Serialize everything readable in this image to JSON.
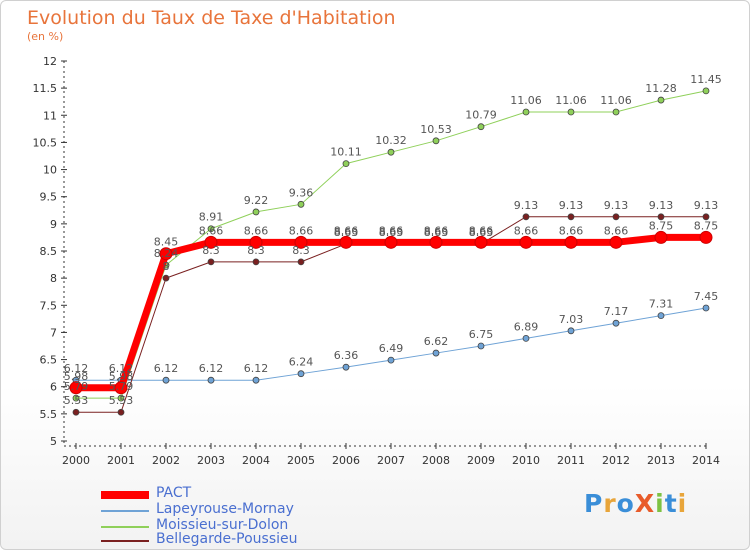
{
  "title": "Evolution du Taux de Taxe d'Habitation",
  "unit_label": "(en %)",
  "logo": {
    "text": "ProXiti",
    "letters": [
      "P",
      "r",
      "o",
      "X",
      "i",
      "t",
      "i"
    ],
    "colors": [
      "#3a8ed8",
      "#e8a53a",
      "#3a8ed8",
      "#e85b2a",
      "#7dc242",
      "#3a8ed8",
      "#e8a53a"
    ]
  },
  "chart_data": {
    "type": "line",
    "title": "Evolution du Taux de Taxe d'Habitation",
    "ylabel": "(en %)",
    "xlabel": "",
    "x": [
      "2000",
      "2001",
      "2002",
      "2003",
      "2004",
      "2005",
      "2006",
      "2007",
      "2008",
      "2009",
      "2010",
      "2011",
      "2012",
      "2013",
      "2014"
    ],
    "ylim": [
      5,
      12
    ],
    "yticks": [
      "5",
      "5.5",
      "6",
      "6.5",
      "7",
      "7.5",
      "8",
      "8.5",
      "9",
      "9.5",
      "10",
      "10.5",
      "11",
      "11.5",
      "12"
    ],
    "grid": false,
    "legend_position": "bottom-left",
    "series": [
      {
        "name": "PACT",
        "color": "#ff0000",
        "width": 7,
        "marker": 6,
        "values": [
          5.98,
          5.98,
          8.45,
          8.66,
          8.66,
          8.66,
          8.66,
          8.66,
          8.66,
          8.66,
          8.66,
          8.66,
          8.66,
          8.75,
          8.75
        ],
        "labels": [
          "5.98",
          "5.98",
          "8.45",
          "8.66",
          "8.66",
          "8.66",
          "8.66",
          "8.66",
          "8.66",
          "8.66",
          "8.66",
          "8.66",
          "8.66",
          "8.75",
          "8.75"
        ]
      },
      {
        "name": "Lapeyrouse-Mornay",
        "color": "#6fa3d6",
        "width": 1,
        "marker": 3,
        "values": [
          6.12,
          6.12,
          6.12,
          6.12,
          6.12,
          6.24,
          6.36,
          6.49,
          6.62,
          6.75,
          6.89,
          7.03,
          7.17,
          7.31,
          7.45
        ],
        "labels": [
          "6.12",
          "6.12",
          "6.12",
          "6.12",
          "6.12",
          "6.24",
          "6.36",
          "6.49",
          "6.62",
          "6.75",
          "6.89",
          "7.03",
          "7.17",
          "7.31",
          "7.45"
        ]
      },
      {
        "name": "Moissieu-sur-Dolon",
        "color": "#8fd05a",
        "width": 1,
        "marker": 3,
        "values": [
          5.79,
          5.79,
          8.24,
          8.91,
          9.22,
          9.36,
          10.11,
          10.32,
          10.53,
          10.79,
          11.06,
          11.06,
          11.06,
          11.28,
          11.45
        ],
        "labels": [
          "5.79",
          "5.79",
          "8.24",
          "8.91",
          "9.22",
          "9.36",
          "10.11",
          "10.32",
          "10.53",
          "10.79",
          "11.06",
          "11.06",
          "11.06",
          "11.28",
          "11.45"
        ]
      },
      {
        "name": "Bellegarde-Poussieu",
        "color": "#7a2020",
        "width": 1,
        "marker": 3,
        "values": [
          5.53,
          5.53,
          8.0,
          8.3,
          8.3,
          8.3,
          8.63,
          8.63,
          8.63,
          8.63,
          9.13,
          9.13,
          9.13,
          9.13,
          9.13
        ],
        "labels": [
          "5.53",
          "5.53",
          "8",
          "8.3",
          "8.3",
          "8.3",
          "8.63",
          "8.63",
          "8.63",
          "8.63",
          "9.13",
          "9.13",
          "9.13",
          "9.13",
          "9.13"
        ]
      }
    ]
  }
}
